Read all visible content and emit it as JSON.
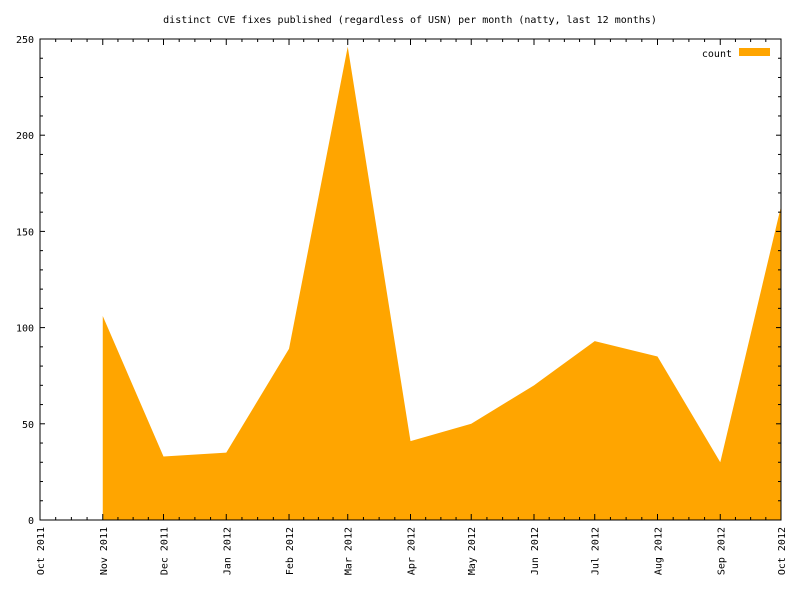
{
  "chart_data": {
    "type": "area",
    "title": "distinct CVE fixes published (regardless of USN) per month (natty, last 12 months)",
    "xlabel": "",
    "ylabel": "",
    "x": [
      "Oct 2011",
      "Nov 2011",
      "Dec 2011",
      "Jan 2012",
      "Feb 2012",
      "Mar 2012",
      "Apr 2012",
      "May 2012",
      "Jun 2012",
      "Jul 2012",
      "Aug 2012",
      "Sep 2012",
      "Oct 2012"
    ],
    "xlim": [
      "2011-10-01",
      "2012-10-01"
    ],
    "ylim": [
      0,
      250
    ],
    "yticks": [
      0,
      50,
      100,
      150,
      200,
      250
    ],
    "series": [
      {
        "name": "count",
        "color": "#ffa500",
        "points": [
          {
            "x": "2011-11-01",
            "y": 106
          },
          {
            "x": "2011-12-01",
            "y": 33
          },
          {
            "x": "2012-01-01",
            "y": 35
          },
          {
            "x": "2012-02-01",
            "y": 89
          },
          {
            "x": "2012-03-01",
            "y": 246
          },
          {
            "x": "2012-04-01",
            "y": 41
          },
          {
            "x": "2012-05-01",
            "y": 50
          },
          {
            "x": "2012-06-01",
            "y": 70
          },
          {
            "x": "2012-07-01",
            "y": 93
          },
          {
            "x": "2012-08-01",
            "y": 85
          },
          {
            "x": "2012-09-01",
            "y": 30
          },
          {
            "x": "2012-10-01",
            "y": 163
          }
        ]
      }
    ],
    "legend": {
      "position": "top-right"
    },
    "grid": false
  }
}
